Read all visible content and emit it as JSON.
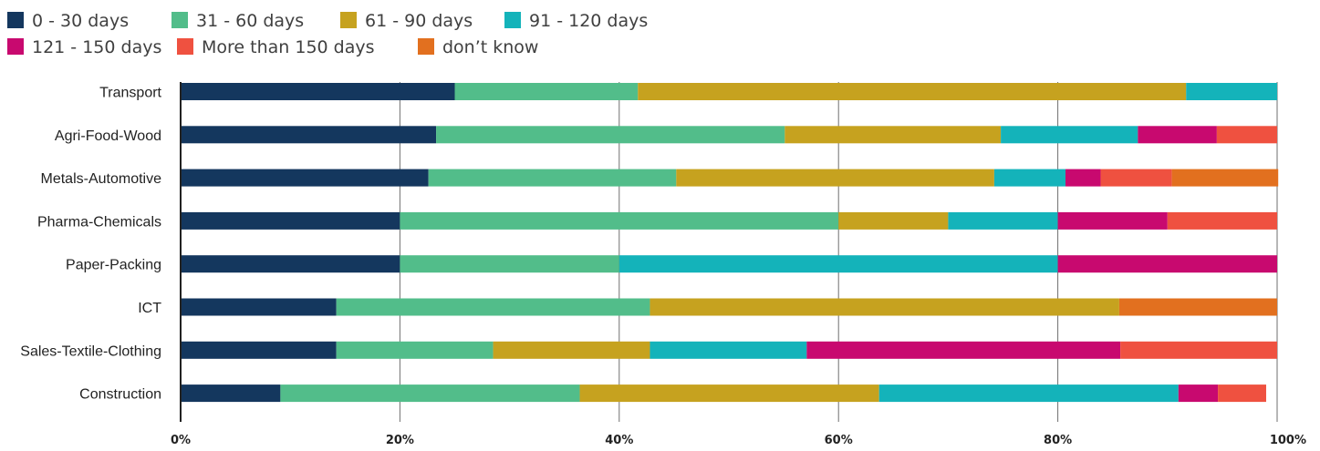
{
  "chart_data": {
    "type": "bar",
    "orientation": "horizontal",
    "stacked": true,
    "categories": [
      "Transport",
      "Agri-Food-Wood",
      "Metals-Automotive",
      "Pharma-Chemicals",
      "Paper-Packing",
      "ICT",
      "Sales-Textile-Clothing",
      "Construction"
    ],
    "series": [
      {
        "name": "0 - 30 days",
        "color": "#14375e",
        "values": [
          25,
          23.3,
          22.6,
          20,
          20,
          14.2,
          14.2,
          9.1
        ]
      },
      {
        "name": "31 - 60 days",
        "color": "#52bd8a",
        "values": [
          16.7,
          31.8,
          22.6,
          40,
          20,
          28.6,
          14.3,
          27.3
        ]
      },
      {
        "name": "61 - 90 days",
        "color": "#c6a21f",
        "values": [
          50,
          19.7,
          29,
          10,
          0,
          42.8,
          14.3,
          27.3
        ]
      },
      {
        "name": "91 - 120 days",
        "color": "#14b3ba",
        "values": [
          8.3,
          12.5,
          6.5,
          10,
          40,
          0,
          14.3,
          27.3
        ]
      },
      {
        "name": "121 - 150 days",
        "color": "#c8096f",
        "values": [
          0,
          7.2,
          3.2,
          10,
          20,
          0,
          28.6,
          3.6
        ]
      },
      {
        "name": "More than 150 days",
        "color": "#ef5140",
        "values": [
          0,
          5.5,
          6.5,
          10,
          0,
          0,
          14.3,
          4.4
        ]
      },
      {
        "name": "don’t know",
        "color": "#e2701f",
        "values": [
          0,
          0,
          9.7,
          0,
          0,
          14.4,
          0,
          0
        ]
      }
    ],
    "xlim": [
      0,
      100
    ],
    "x_ticks": [
      "0%",
      "20%",
      "40%",
      "60%",
      "80%",
      "100%"
    ],
    "grid": "vertical",
    "legend_position": "top-left"
  }
}
